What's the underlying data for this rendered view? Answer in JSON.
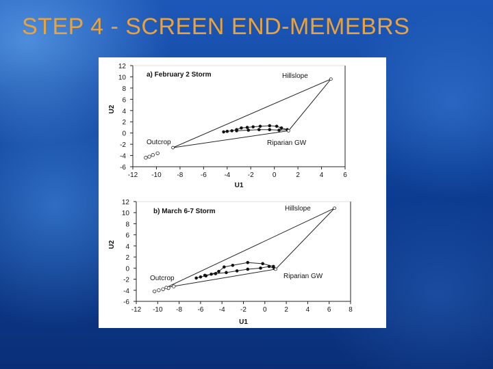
{
  "slide": {
    "title": "STEP 4 - SCREEN END-MEMEBRS",
    "colors": {
      "title": "#e8a23e",
      "background": "#0d3f96",
      "figure_bg": "#ffffff"
    }
  },
  "chart_data": [
    {
      "type": "scatter",
      "title": "a) February 2 Storm",
      "xlabel": "U1",
      "ylabel": "U2",
      "xlim": [
        -12,
        6
      ],
      "ylim": [
        -6,
        12
      ],
      "xticks": [
        -12,
        -10,
        -8,
        -6,
        -4,
        -2,
        0,
        2,
        4,
        6
      ],
      "yticks": [
        -6,
        -4,
        -2,
        0,
        2,
        4,
        6,
        8,
        10,
        12
      ],
      "grid": false,
      "end_members": [
        {
          "name": "Hillslope",
          "x": 4.8,
          "y": 9.6
        },
        {
          "name": "Outcrop",
          "x": -8.6,
          "y": -2.6
        },
        {
          "name": "Riparian GW",
          "x": 1.2,
          "y": 0.4
        }
      ],
      "triangle": [
        [
          4.8,
          9.6
        ],
        [
          -8.6,
          -2.6
        ],
        [
          1.2,
          0.4
        ]
      ],
      "outcrop_points": [
        [
          -10.9,
          -4.4
        ],
        [
          -10.6,
          -4.2
        ],
        [
          -10.3,
          -3.9
        ],
        [
          -9.9,
          -3.6
        ]
      ],
      "storm_points": [
        [
          -4.3,
          0.2
        ],
        [
          -4.0,
          0.3
        ],
        [
          -3.6,
          0.4
        ],
        [
          -3.2,
          0.6
        ],
        [
          -2.8,
          0.9
        ],
        [
          -2.3,
          1.0
        ],
        [
          -1.8,
          1.1
        ],
        [
          -1.2,
          1.2
        ],
        [
          -0.4,
          1.3
        ],
        [
          0.2,
          1.2
        ],
        [
          0.6,
          0.9
        ],
        [
          1.1,
          0.6
        ],
        [
          0.4,
          0.5
        ],
        [
          -0.4,
          0.6
        ],
        [
          -1.3,
          0.6
        ],
        [
          -2.2,
          0.5
        ],
        [
          -3.2,
          0.4
        ]
      ]
    },
    {
      "type": "scatter",
      "title": "b) March 6-7 Storm",
      "xlabel": "U1",
      "ylabel": "U2",
      "xlim": [
        -12,
        8
      ],
      "ylim": [
        -6,
        12
      ],
      "xticks": [
        -12,
        -10,
        -8,
        -6,
        -4,
        -2,
        0,
        2,
        4,
        6,
        8
      ],
      "yticks": [
        -6,
        -4,
        -2,
        0,
        2,
        4,
        6,
        8,
        10,
        12
      ],
      "grid": false,
      "end_members": [
        {
          "name": "Hillslope",
          "x": 6.5,
          "y": 10.8
        },
        {
          "name": "Outcrop",
          "x": -9.2,
          "y": -3.5
        },
        {
          "name": "Riparian GW",
          "x": 1.0,
          "y": -0.2
        }
      ],
      "triangle": [
        [
          6.5,
          10.8
        ],
        [
          -9.2,
          -3.5
        ],
        [
          1.0,
          -0.2
        ]
      ],
      "outcrop_points": [
        [
          -10.3,
          -4.2
        ],
        [
          -9.9,
          -4.0
        ],
        [
          -9.5,
          -3.8
        ],
        [
          -9.0,
          -3.6
        ],
        [
          -8.5,
          -3.3
        ]
      ],
      "storm_points": [
        [
          -6.4,
          -1.8
        ],
        [
          -6.0,
          -1.6
        ],
        [
          -5.5,
          -1.4
        ],
        [
          -5.0,
          -1.1
        ],
        [
          -4.3,
          -0.6
        ],
        [
          -3.8,
          0.2
        ],
        [
          -3.0,
          0.5
        ],
        [
          -1.6,
          1.0
        ],
        [
          -0.2,
          0.8
        ],
        [
          0.8,
          0.3
        ],
        [
          0.9,
          -0.1
        ],
        [
          0.4,
          0.3
        ],
        [
          -0.4,
          0.0
        ],
        [
          -1.6,
          -0.2
        ],
        [
          -2.6,
          -0.5
        ],
        [
          -3.6,
          -0.8
        ],
        [
          -4.6,
          -1.0
        ],
        [
          -5.6,
          -1.3
        ]
      ]
    }
  ]
}
